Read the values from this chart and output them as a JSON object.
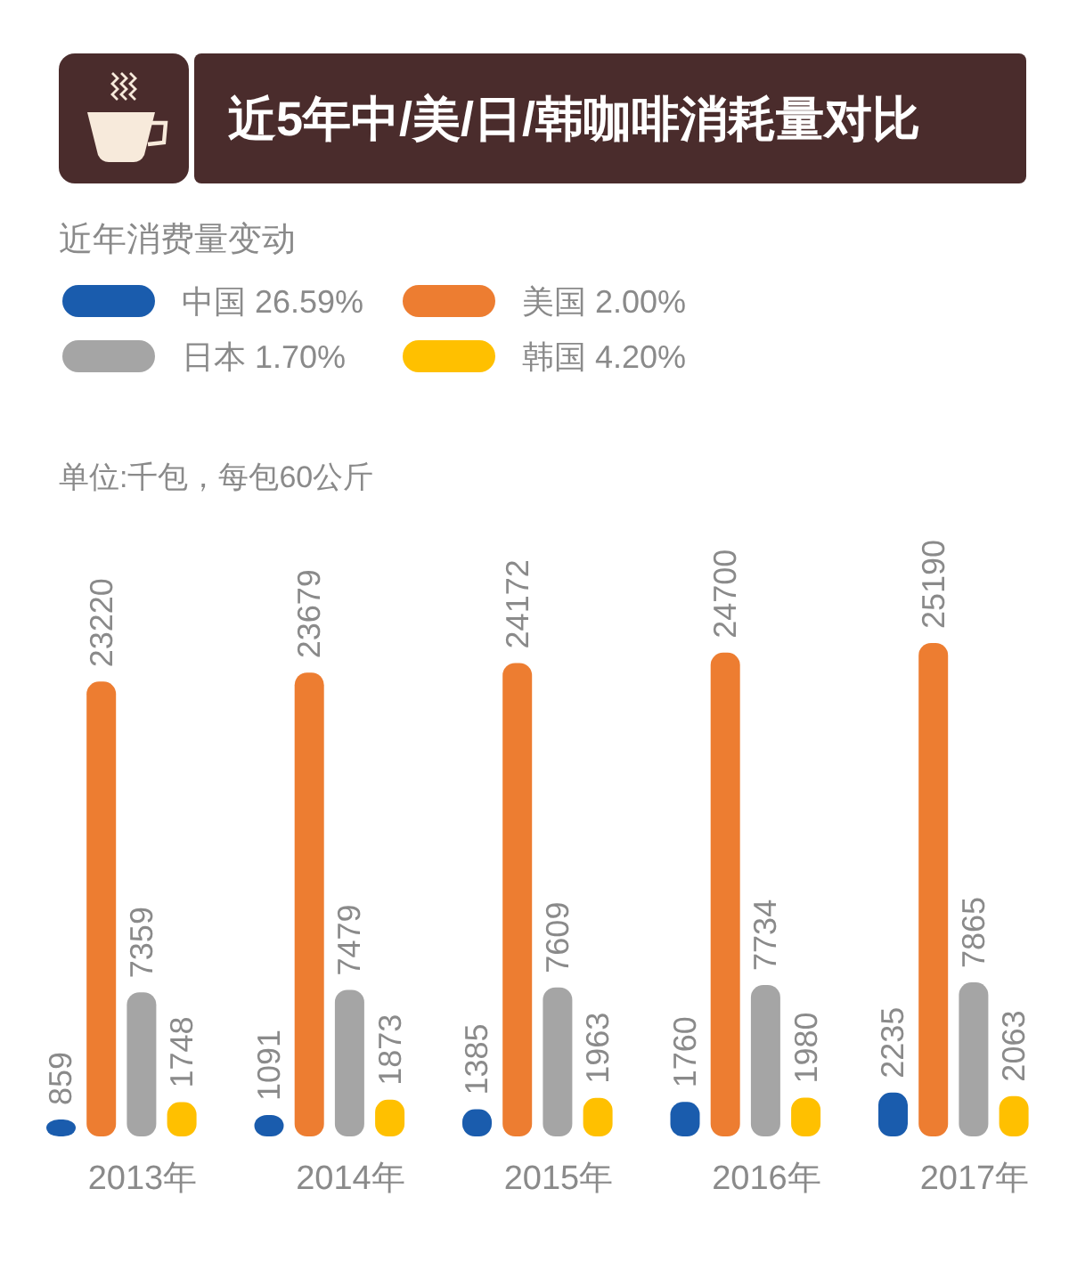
{
  "chart_data": {
    "type": "bar",
    "title": "近5年中/美/日/韩咖啡消耗量对比",
    "legend_title": "近年消费量变动",
    "ylabel": "单位:千包，每包60公斤",
    "categories": [
      "2013年",
      "2014年",
      "2015年",
      "2016年",
      "2017年"
    ],
    "series": [
      {
        "name": "中国 26.59%",
        "color": "#1a5cad",
        "values": [
          859,
          1091,
          1385,
          1760,
          2235
        ]
      },
      {
        "name": "美国 2.00%",
        "color": "#ed7d31",
        "values": [
          23220,
          23679,
          24172,
          24700,
          25190
        ]
      },
      {
        "name": "日本 1.70%",
        "color": "#a5a5a5",
        "values": [
          7359,
          7479,
          7609,
          7734,
          7865
        ]
      },
      {
        "name": "韩国 4.20%",
        "color": "#ffc000",
        "values": [
          1748,
          1873,
          1963,
          1980,
          2063
        ]
      }
    ],
    "data_labels": true,
    "legend": "top left"
  }
}
